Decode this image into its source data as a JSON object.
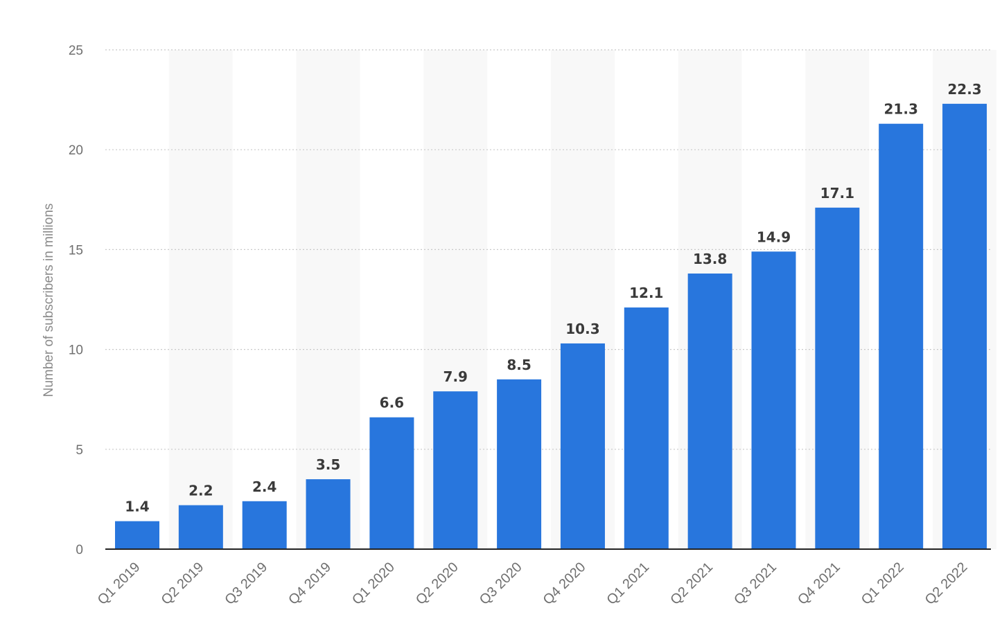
{
  "chart_data": {
    "type": "bar",
    "title": "",
    "xlabel": "",
    "ylabel": "Number of subscribers in millions",
    "categories": [
      "Q1 2019",
      "Q2 2019",
      "Q3 2019",
      "Q4 2019",
      "Q1 2020",
      "Q2 2020",
      "Q3 2020",
      "Q4 2020",
      "Q1 2021",
      "Q2 2021",
      "Q3 2021",
      "Q4 2021",
      "Q1 2022",
      "Q2 2022"
    ],
    "values": [
      1.4,
      2.2,
      2.4,
      3.5,
      6.6,
      7.9,
      8.5,
      10.3,
      12.1,
      13.8,
      14.9,
      17.1,
      21.3,
      22.3
    ],
    "value_labels": [
      "1.4",
      "2.2",
      "2.4",
      "3.5",
      "6.6",
      "7.9",
      "8.5",
      "10.3",
      "12.1",
      "13.8",
      "14.9",
      "17.1",
      "21.3",
      "22.3"
    ],
    "ylim": [
      0,
      25
    ],
    "yticks": [
      "0",
      "5",
      "10",
      "15",
      "20",
      "25"
    ],
    "grid": "horizontal dotted",
    "colors": {
      "bar": "#2876dd",
      "band": "#f8f8f8",
      "grid": "#c8c8c8",
      "axis": "#222222"
    }
  }
}
